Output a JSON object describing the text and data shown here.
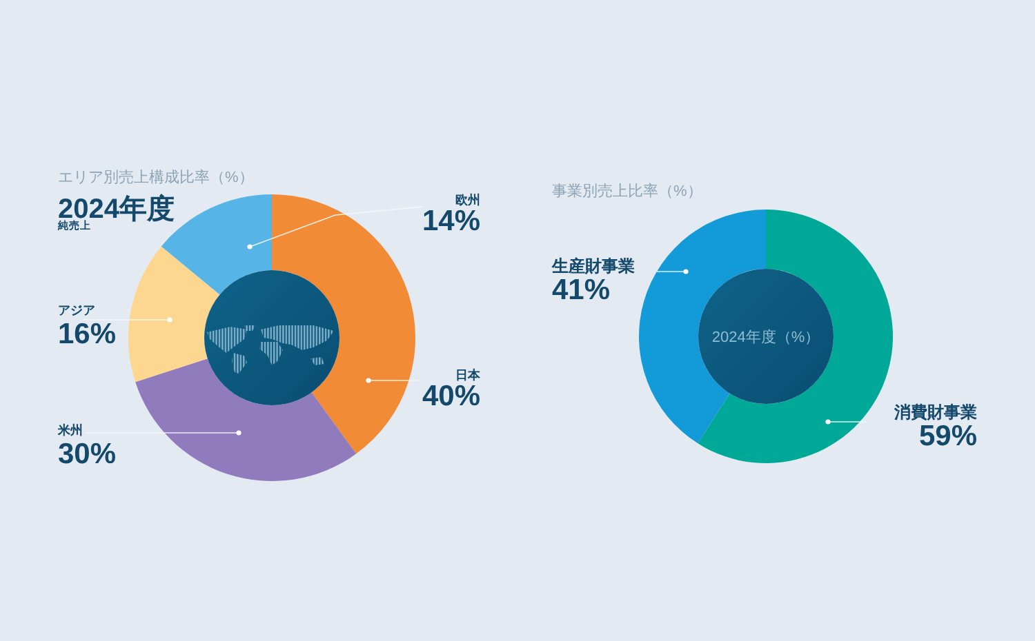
{
  "chart_data": [
    {
      "type": "donut",
      "title": "エリア別売上構成比率（%）",
      "subtitle": "2024年度",
      "annotations": [
        "純売上"
      ],
      "categories": [
        "日本",
        "米州",
        "アジア",
        "欧州"
      ],
      "values": [
        40,
        30,
        16,
        14
      ],
      "colors": [
        "#f28b36",
        "#907cbd",
        "#fdd68f",
        "#56b5e6"
      ],
      "value_labels": [
        "40%",
        "30%",
        "16%",
        "14%"
      ]
    },
    {
      "type": "donut",
      "title": "事業別売上比率（%）",
      "subtitle": "2024年度（%）",
      "categories": [
        "消費財事業",
        "生産財事業"
      ],
      "values": [
        59,
        41
      ],
      "colors": [
        "#00a898",
        "#139ad8"
      ],
      "value_labels": [
        "59%",
        "41%"
      ]
    }
  ]
}
